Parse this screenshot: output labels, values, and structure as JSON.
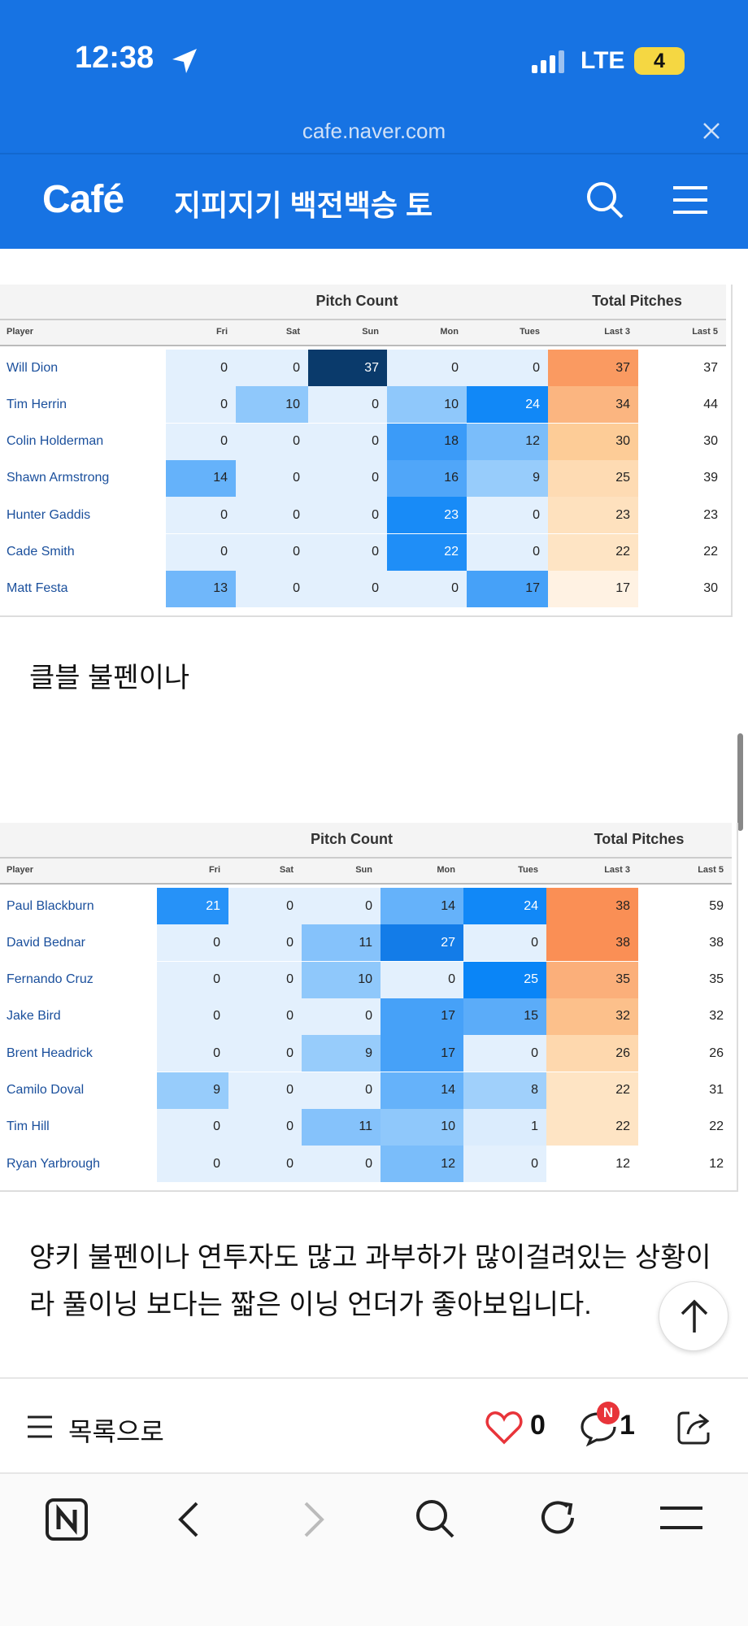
{
  "status_bar": {
    "time": "12:38",
    "network": "LTE",
    "battery": "4"
  },
  "url_bar": {
    "url": "cafe.naver.com"
  },
  "header": {
    "logo": "Café",
    "title": "지피지기 백전백승 토"
  },
  "tables": [
    {
      "group_headers": [
        "Pitch Count",
        "Total Pitches"
      ],
      "columns": [
        "Player",
        "Fri",
        "Sat",
        "Sun",
        "Mon",
        "Tues",
        "Last 3",
        "Last 5"
      ],
      "rows": [
        [
          "Will Dion",
          0,
          0,
          37,
          0,
          0,
          37,
          37
        ],
        [
          "Tim Herrin",
          0,
          10,
          0,
          10,
          24,
          34,
          44
        ],
        [
          "Colin Holderman",
          0,
          0,
          0,
          18,
          12,
          30,
          30
        ],
        [
          "Shawn Armstrong",
          14,
          0,
          0,
          16,
          9,
          25,
          39
        ],
        [
          "Hunter Gaddis",
          0,
          0,
          0,
          23,
          0,
          23,
          23
        ],
        [
          "Cade Smith",
          0,
          0,
          0,
          22,
          0,
          22,
          22
        ],
        [
          "Matt Festa",
          13,
          0,
          0,
          0,
          17,
          17,
          30
        ]
      ]
    },
    {
      "group_headers": [
        "Pitch Count",
        "Total Pitches"
      ],
      "columns": [
        "Player",
        "Fri",
        "Sat",
        "Sun",
        "Mon",
        "Tues",
        "Last 3",
        "Last 5"
      ],
      "rows": [
        [
          "Paul Blackburn",
          21,
          0,
          0,
          14,
          24,
          38,
          59
        ],
        [
          "David Bednar",
          0,
          0,
          11,
          27,
          0,
          38,
          38
        ],
        [
          "Fernando Cruz",
          0,
          0,
          10,
          0,
          25,
          35,
          35
        ],
        [
          "Jake Bird",
          0,
          0,
          0,
          17,
          15,
          32,
          32
        ],
        [
          "Brent Headrick",
          0,
          0,
          9,
          17,
          0,
          26,
          26
        ],
        [
          "Camilo Doval",
          9,
          0,
          0,
          14,
          8,
          22,
          31
        ],
        [
          "Tim Hill",
          0,
          0,
          11,
          10,
          1,
          22,
          22
        ],
        [
          "Ryan Yarbrough",
          0,
          0,
          0,
          12,
          0,
          12,
          12
        ]
      ]
    }
  ],
  "texts": [
    "클블 불펜이나",
    "양키 불펜이나 연투자도 많고 과부하가 많이걸려있는 상황이라 풀이닝 보다는 짧은 이닝 언더가 좋아보입니다."
  ],
  "footer": {
    "list_button": "목록으로",
    "likes": 0,
    "comments": 1,
    "badge": "N"
  }
}
